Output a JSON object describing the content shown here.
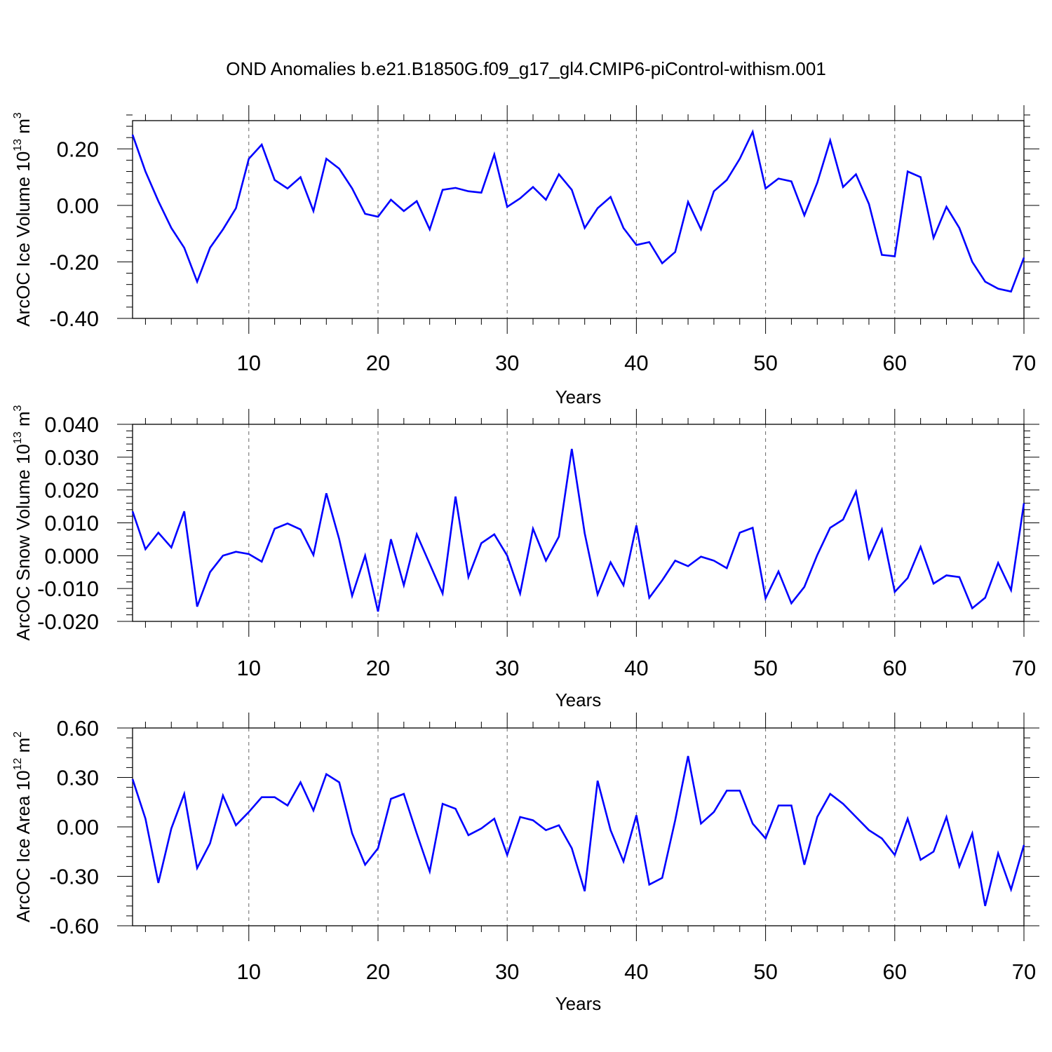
{
  "chart_data": [
    {
      "type": "line",
      "title": "OND Anomalies b.e21.B1850G.f09_g17_gl4.CMIP6-piControl-withism.001",
      "xlabel": "Years",
      "ylabel": {
        "prefix": "ArcOC Ice Volume 10",
        "exp": "13",
        "unit": " m",
        "unit_exp": "3"
      },
      "xlim": [
        1,
        70
      ],
      "ylim": [
        -0.4,
        0.3
      ],
      "xticks": [
        10,
        20,
        30,
        40,
        50,
        60,
        70
      ],
      "xtick_labels": [
        "10",
        "20",
        "30",
        "40",
        "50",
        "60",
        "70"
      ],
      "yticks": [
        -0.4,
        -0.2,
        0.0,
        0.2
      ],
      "ytick_labels": [
        "-0.40",
        "-0.20",
        "0.00",
        "0.20"
      ],
      "grid": "vertical dashed at major x ticks",
      "color": "#0000ff",
      "series": [
        {
          "name": "ArcOC Ice Volume",
          "x": [
            1,
            2,
            3,
            4,
            5,
            6,
            7,
            8,
            9,
            10,
            11,
            12,
            13,
            14,
            15,
            16,
            17,
            18,
            19,
            20,
            21,
            22,
            23,
            24,
            25,
            26,
            27,
            28,
            29,
            30,
            31,
            32,
            33,
            34,
            35,
            36,
            37,
            38,
            39,
            40,
            41,
            42,
            43,
            44,
            45,
            46,
            47,
            48,
            49,
            50,
            51,
            52,
            53,
            54,
            55,
            56,
            57,
            58,
            59,
            60,
            61,
            62,
            63,
            64,
            65,
            66,
            67,
            68,
            69,
            70
          ],
          "values": [
            0.25,
            0.12,
            0.015,
            -0.08,
            -0.15,
            -0.27,
            -0.15,
            -0.085,
            -0.01,
            0.165,
            0.215,
            0.09,
            0.06,
            0.1,
            -0.02,
            0.165,
            0.13,
            0.06,
            -0.03,
            -0.04,
            0.02,
            -0.02,
            0.015,
            -0.085,
            0.055,
            0.062,
            0.05,
            0.045,
            0.18,
            -0.005,
            0.025,
            0.065,
            0.02,
            0.11,
            0.055,
            -0.08,
            -0.01,
            0.03,
            -0.08,
            -0.14,
            -0.13,
            -0.205,
            -0.165,
            0.012,
            -0.085,
            0.05,
            0.09,
            0.165,
            0.26,
            0.06,
            0.095,
            0.085,
            -0.035,
            0.08,
            0.23,
            0.065,
            0.11,
            0.005,
            -0.175,
            -0.18,
            0.12,
            0.1,
            -0.115,
            -0.005,
            -0.08,
            -0.2,
            -0.27,
            -0.295,
            -0.305,
            -0.185
          ]
        }
      ]
    },
    {
      "type": "line",
      "xlabel": "Years",
      "ylabel": {
        "prefix": "ArcOC Snow Volume 10",
        "exp": "13",
        "unit": " m",
        "unit_exp": "3"
      },
      "xlim": [
        1,
        70
      ],
      "ylim": [
        -0.02,
        0.04
      ],
      "xticks": [
        10,
        20,
        30,
        40,
        50,
        60,
        70
      ],
      "xtick_labels": [
        "10",
        "20",
        "30",
        "40",
        "50",
        "60",
        "70"
      ],
      "yticks": [
        -0.02,
        -0.01,
        0.0,
        0.01,
        0.02,
        0.03,
        0.04
      ],
      "ytick_labels": [
        "-0.020",
        "-0.010",
        "0.000",
        "0.010",
        "0.020",
        "0.030",
        "0.040"
      ],
      "grid": "vertical dashed at major x ticks",
      "color": "#0000ff",
      "series": [
        {
          "name": "ArcOC Snow Volume",
          "x": [
            1,
            2,
            3,
            4,
            5,
            6,
            7,
            8,
            9,
            10,
            11,
            12,
            13,
            14,
            15,
            16,
            17,
            18,
            19,
            20,
            21,
            22,
            23,
            24,
            25,
            26,
            27,
            28,
            29,
            30,
            31,
            32,
            33,
            34,
            35,
            36,
            37,
            38,
            39,
            40,
            41,
            42,
            43,
            44,
            45,
            46,
            47,
            48,
            49,
            50,
            51,
            52,
            53,
            54,
            55,
            56,
            57,
            58,
            59,
            60,
            61,
            62,
            63,
            64,
            65,
            66,
            67,
            68,
            69,
            70
          ],
          "values": [
            0.0135,
            0.002,
            0.007,
            0.0025,
            0.0135,
            -0.0155,
            -0.005,
            0.0,
            0.0012,
            0.0005,
            -0.0018,
            0.0082,
            0.0098,
            0.008,
            0.0002,
            0.019,
            0.005,
            -0.0122,
            0.0,
            -0.017,
            0.005,
            -0.009,
            0.0065,
            -0.0025,
            -0.0115,
            0.018,
            -0.0065,
            0.0038,
            0.0065,
            0.0,
            -0.0115,
            0.0082,
            -0.0015,
            0.0058,
            0.0325,
            0.0068,
            -0.0118,
            -0.002,
            -0.009,
            0.0092,
            -0.0128,
            -0.0075,
            -0.0015,
            -0.0032,
            -0.0003,
            -0.0015,
            -0.0038,
            0.007,
            0.0085,
            -0.013,
            -0.0048,
            -0.0145,
            -0.0095,
            0.0002,
            0.0085,
            0.011,
            0.0195,
            -0.0008,
            0.008,
            -0.011,
            -0.0068,
            0.0027,
            -0.0085,
            -0.006,
            -0.0065,
            -0.016,
            -0.0128,
            -0.0022,
            -0.0105,
            0.016
          ]
        }
      ]
    },
    {
      "type": "line",
      "xlabel": "Years",
      "ylabel": {
        "prefix": "ArcOC Ice Area 10",
        "exp": "12",
        "unit": " m",
        "unit_exp": "2"
      },
      "xlim": [
        1,
        70
      ],
      "ylim": [
        -0.6,
        0.6
      ],
      "xticks": [
        10,
        20,
        30,
        40,
        50,
        60,
        70
      ],
      "xtick_labels": [
        "10",
        "20",
        "30",
        "40",
        "50",
        "60",
        "70"
      ],
      "yticks": [
        -0.6,
        -0.3,
        0.0,
        0.3,
        0.6
      ],
      "ytick_labels": [
        "-0.60",
        "-0.30",
        "0.00",
        "0.30",
        "0.60"
      ],
      "grid": "vertical dashed at major x ticks",
      "color": "#0000ff",
      "series": [
        {
          "name": "ArcOC Ice Area",
          "x": [
            1,
            2,
            3,
            4,
            5,
            6,
            7,
            8,
            9,
            10,
            11,
            12,
            13,
            14,
            15,
            16,
            17,
            18,
            19,
            20,
            21,
            22,
            23,
            24,
            25,
            26,
            27,
            28,
            29,
            30,
            31,
            32,
            33,
            34,
            35,
            36,
            37,
            38,
            39,
            40,
            41,
            42,
            43,
            44,
            45,
            46,
            47,
            48,
            49,
            50,
            51,
            52,
            53,
            54,
            55,
            56,
            57,
            58,
            59,
            60,
            61,
            62,
            63,
            64,
            65,
            66,
            67,
            68,
            69,
            70
          ],
          "values": [
            0.29,
            0.05,
            -0.34,
            -0.01,
            0.2,
            -0.25,
            -0.1,
            0.19,
            0.01,
            0.09,
            0.18,
            0.18,
            0.13,
            0.27,
            0.1,
            0.32,
            0.27,
            -0.04,
            -0.23,
            -0.13,
            0.17,
            0.2,
            -0.04,
            -0.27,
            0.14,
            0.11,
            -0.05,
            -0.01,
            0.05,
            -0.17,
            0.06,
            0.04,
            -0.02,
            0.01,
            -0.13,
            -0.39,
            0.28,
            -0.02,
            -0.21,
            0.07,
            -0.35,
            -0.31,
            0.04,
            0.43,
            0.02,
            0.09,
            0.22,
            0.22,
            0.02,
            -0.07,
            0.13,
            0.13,
            -0.23,
            0.06,
            0.2,
            0.14,
            0.06,
            -0.02,
            -0.07,
            -0.17,
            0.05,
            -0.2,
            -0.15,
            0.06,
            -0.24,
            -0.04,
            -0.48,
            -0.16,
            -0.38,
            -0.11
          ]
        }
      ]
    }
  ]
}
